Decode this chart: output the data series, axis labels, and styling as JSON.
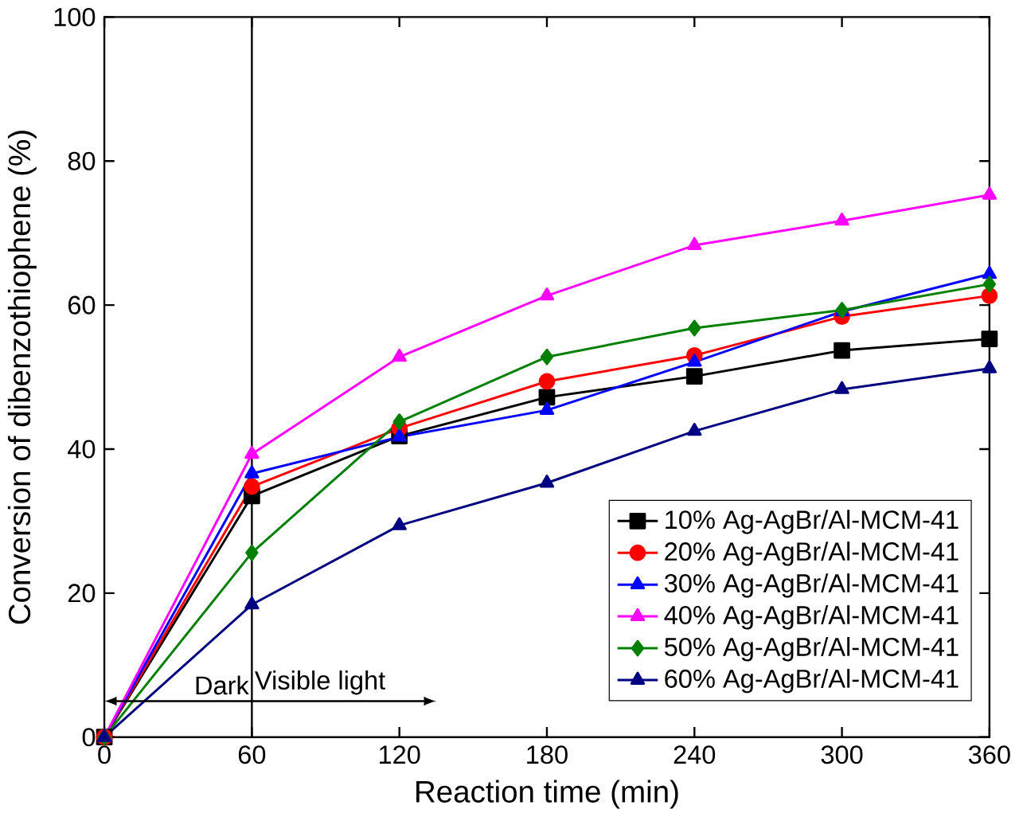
{
  "chart_data": {
    "type": "line",
    "xlabel": "Reaction time (min)",
    "ylabel": "Conversion of dibenzothiophene (%)",
    "x": [
      0,
      60,
      120,
      180,
      240,
      300,
      360
    ],
    "xlim": [
      0,
      360
    ],
    "xticks": [
      0,
      60,
      120,
      180,
      240,
      300,
      360
    ],
    "ylim": [
      0,
      100
    ],
    "yticks": [
      0,
      20,
      40,
      60,
      80,
      100
    ],
    "grid": false,
    "legend": "bottom right",
    "line_style": "solid",
    "ref_lines": [
      {
        "axis": "x",
        "value": 60,
        "color": "#000000"
      }
    ],
    "annotations": [
      "Dark",
      "Visible light"
    ],
    "series": [
      {
        "name": "10% Ag-AgBr/Al-MCM-41",
        "color": "#000000",
        "marker": "square",
        "values": [
          0,
          33.5,
          41.8,
          47.2,
          50.1,
          53.7,
          55.3
        ]
      },
      {
        "name": "20% Ag-AgBr/Al-MCM-41",
        "color": "#ff0000",
        "marker": "circle",
        "values": [
          0,
          34.8,
          42.9,
          49.4,
          53.0,
          58.4,
          61.3
        ]
      },
      {
        "name": "30% Ag-AgBr/Al-MCM-41",
        "color": "#0000ff",
        "marker": "triangle",
        "values": [
          0,
          36.6,
          41.7,
          45.4,
          52.1,
          59.1,
          64.3
        ]
      },
      {
        "name": "40% Ag-AgBr/Al-MCM-41",
        "color": "#ff00ff",
        "marker": "triangle",
        "values": [
          0,
          39.3,
          52.8,
          61.3,
          68.3,
          71.7,
          75.3
        ]
      },
      {
        "name": "50% Ag-AgBr/Al-MCM-41",
        "color": "#008000",
        "marker": "diamond",
        "values": [
          0,
          25.6,
          43.8,
          52.8,
          56.8,
          59.3,
          62.9
        ]
      },
      {
        "name": "60% Ag-AgBr/Al-MCM-41",
        "color": "#000080",
        "marker": "triangle",
        "values": [
          0,
          18.4,
          29.4,
          35.3,
          42.5,
          48.3,
          51.2
        ]
      }
    ]
  }
}
